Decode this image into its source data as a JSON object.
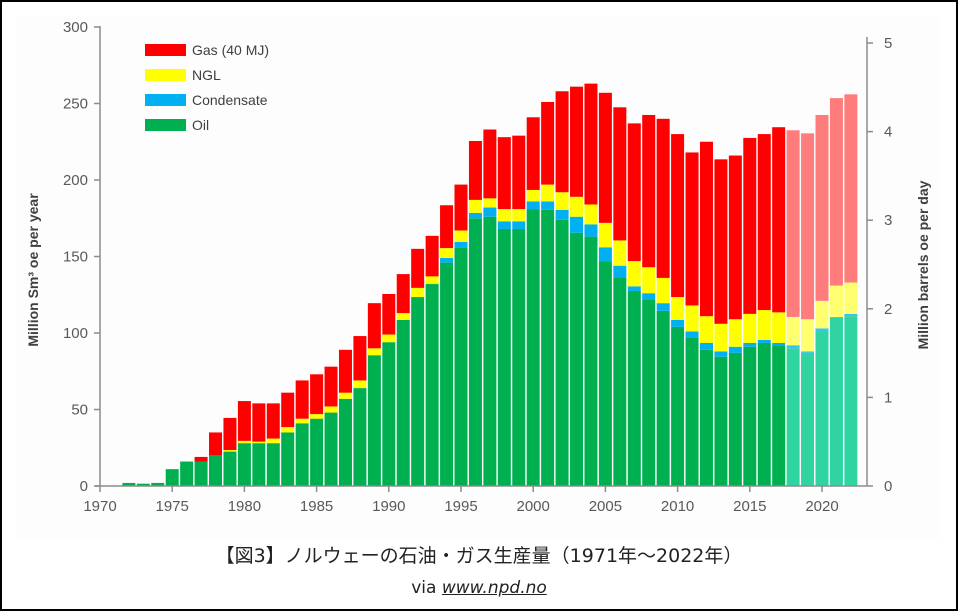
{
  "caption": {
    "title": "【図3】ノルウェーの石油・ガス生産量（1971年～2022年）",
    "via": "via",
    "source_link": "www.npd.no"
  },
  "chart_data": {
    "type": "bar",
    "stacked": true,
    "title": "",
    "xlabel": "",
    "ylabel": "Million Sm³ oe  per year",
    "y2label": "Million barrels oe per day",
    "xlim": [
      1970,
      2023
    ],
    "ylim": [
      0,
      300
    ],
    "y2lim": [
      0,
      5.17
    ],
    "xticks": [
      "1970",
      "1975",
      "1980",
      "1985",
      "1990",
      "1995",
      "2000",
      "2005",
      "2010",
      "2015",
      "2020"
    ],
    "yticks": [
      "0",
      "50",
      "100",
      "150",
      "200",
      "250",
      "300"
    ],
    "y2ticks": [
      "0",
      "1",
      "2",
      "3",
      "4",
      "5"
    ],
    "grid": false,
    "legend_position": "top-left",
    "projection_from_year": 2018,
    "categories": [
      1971,
      1972,
      1973,
      1974,
      1975,
      1976,
      1977,
      1978,
      1979,
      1980,
      1981,
      1982,
      1983,
      1984,
      1985,
      1986,
      1987,
      1988,
      1989,
      1990,
      1991,
      1992,
      1993,
      1994,
      1995,
      1996,
      1997,
      1998,
      1999,
      2000,
      2001,
      2002,
      2003,
      2004,
      2005,
      2006,
      2007,
      2008,
      2009,
      2010,
      2011,
      2012,
      2013,
      2014,
      2015,
      2016,
      2017,
      2018,
      2019,
      2020,
      2021,
      2022
    ],
    "series": [
      {
        "name": "Oil",
        "color": "#00b050",
        "projection_color": "#2fd4a0",
        "values": [
          0.3,
          2,
          1.5,
          2,
          11,
          16,
          16,
          20,
          22.5,
          28,
          28,
          28,
          35,
          41,
          44,
          48,
          57,
          64,
          85.5,
          94,
          108.5,
          123.5,
          132,
          146,
          156,
          175,
          176,
          168,
          168,
          181,
          180.5,
          174,
          165.5,
          163,
          147,
          136.5,
          127.5,
          122,
          114.5,
          104,
          97,
          89,
          84.5,
          87,
          91,
          93.5,
          91.5,
          90,
          87,
          101,
          110,
          111
        ]
      },
      {
        "name": "Condensate",
        "color": "#00b0f0",
        "projection_color": "#33c4f0",
        "values": [
          0,
          0,
          0,
          0,
          0,
          0,
          0,
          0,
          0,
          0,
          0,
          0,
          0,
          0,
          0,
          0,
          0,
          0,
          0,
          0,
          0,
          0,
          0,
          3,
          3.5,
          3.5,
          6,
          5,
          5,
          5,
          5.5,
          6.5,
          10.5,
          8,
          9,
          7.5,
          3,
          4,
          5,
          4.5,
          4,
          4.5,
          3.5,
          4,
          2.5,
          2,
          2,
          2,
          1,
          2,
          0.5,
          1.5
        ]
      },
      {
        "name": "NGL",
        "color": "#ffff00",
        "projection_color": "#ffff70",
        "values": [
          0,
          0,
          0,
          0,
          0,
          0,
          0,
          0,
          1,
          1.5,
          1,
          3,
          3.5,
          3,
          3,
          4,
          4,
          5,
          4.5,
          5,
          4.5,
          6,
          5,
          6.5,
          7.5,
          8.5,
          6,
          8,
          8,
          7.5,
          11,
          11.5,
          13,
          13,
          16,
          16.5,
          16.5,
          17,
          16.5,
          15,
          17,
          17.5,
          18,
          18,
          19,
          19.5,
          20,
          18.5,
          21,
          18,
          20.5,
          20.5
        ]
      },
      {
        "name": "Gas (40 MJ)",
        "color": "#ff0000",
        "projection_color": "#ff7c7c",
        "values": [
          0,
          0,
          0,
          0,
          0,
          0,
          3,
          15,
          21,
          26,
          25,
          23,
          22.5,
          25,
          26,
          26,
          28,
          29,
          29.5,
          26.5,
          25.5,
          25.5,
          26.5,
          28,
          30,
          38.5,
          45,
          47,
          48,
          47.5,
          54,
          66,
          72,
          79,
          85,
          87,
          90,
          99.5,
          104,
          106.5,
          100,
          114,
          107.5,
          107,
          115,
          115,
          121,
          122,
          121.5,
          121.5,
          122.5,
          123
        ]
      }
    ]
  }
}
